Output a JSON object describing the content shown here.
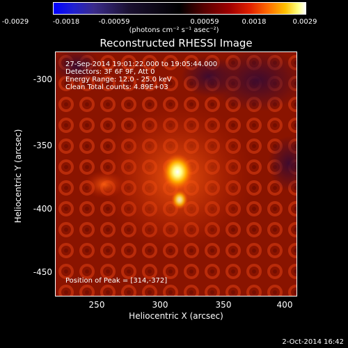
{
  "colorbar": {
    "ticks": [
      "-0.0029",
      "-0.0018",
      "-0.00059",
      "0.00059",
      "0.0018",
      "0.0029"
    ],
    "unit_label": "(photons cm⁻² s⁻¹ asec⁻²)"
  },
  "image": {
    "title": "Reconstructed RHESSI Image",
    "info_lines": [
      "27-Sep-2014 19:01:22.000 to 19:05:44.000",
      "Detectors: 3F 6F 9F, Att 0",
      "Energy Range: 12.0 - 25.0 keV",
      "Clean     Total counts: 4.89E+03"
    ],
    "peak_label": "Position of Peak = [314,-372]",
    "x_axis_label": "Heliocentric X (arcsec)",
    "y_axis_label": "Heliocentric Y (arcsec)",
    "x_ticks": [
      "250",
      "300",
      "350",
      "400"
    ],
    "y_ticks": [
      "-300",
      "-350",
      "-400",
      "-450"
    ]
  },
  "footer": {
    "date": "2-Oct-2014 16:42"
  }
}
